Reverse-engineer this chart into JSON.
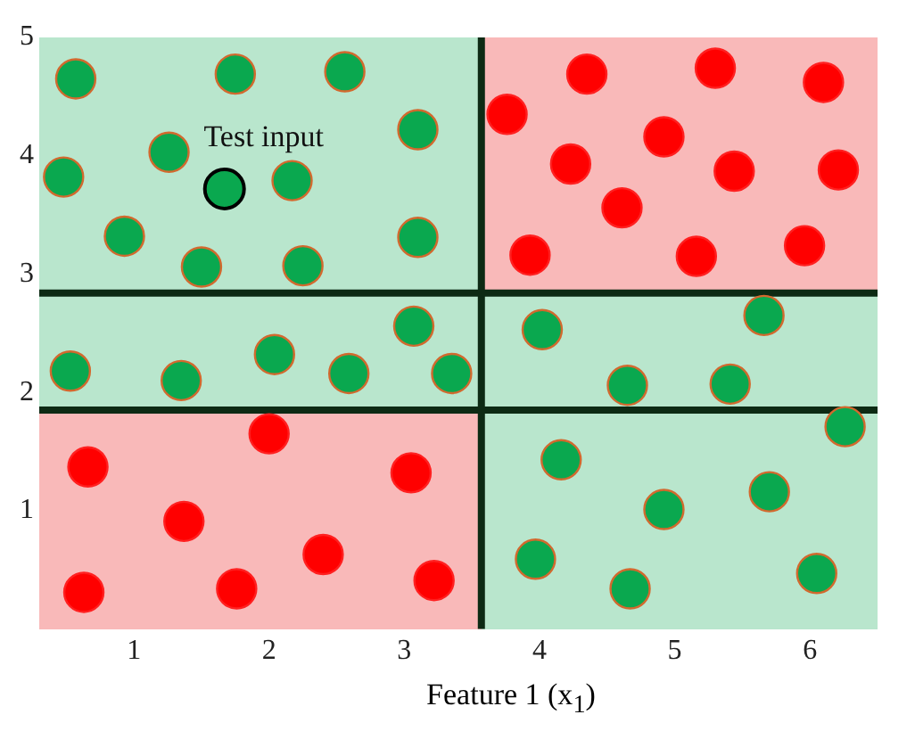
{
  "chart_data": {
    "type": "scatter",
    "xlabel": "Feature 1 (x$_{1}$)",
    "xlim": [
      0.3,
      6.5
    ],
    "ylim": [
      0,
      5
    ],
    "xticks": [
      1,
      2,
      3,
      4,
      5,
      6
    ],
    "yticks": [
      1,
      2,
      3,
      4,
      5
    ],
    "grid": false,
    "legend": false,
    "marker": "circle",
    "series": [
      {
        "color": "#0aa84f",
        "x": [
          0.57,
          1.75,
          2.56,
          3.1,
          0.48,
          1.26,
          2.17,
          3.1,
          0.93,
          1.5,
          2.25,
          0.53,
          1.35,
          2.04,
          2.59,
          3.07,
          3.35,
          4.02,
          5.66,
          4.65,
          5.41,
          4.16,
          6.26,
          4.92,
          5.7,
          3.97,
          4.67,
          6.05
        ],
        "values": [
          4.65,
          4.69,
          4.71,
          4.22,
          3.82,
          4.03,
          3.79,
          3.31,
          3.32,
          3.06,
          3.07,
          2.18,
          2.1,
          2.32,
          2.16,
          2.56,
          2.16,
          2.53,
          2.65,
          2.06,
          2.07,
          1.43,
          1.71,
          1.01,
          1.16,
          0.59,
          0.34,
          0.47
        ]
      },
      {
        "color": "#ff0000",
        "x": [
          0.66,
          2.0,
          3.05,
          1.37,
          0.63,
          1.76,
          2.4,
          3.22,
          4.35,
          5.3,
          6.1,
          3.76,
          4.92,
          4.23,
          5.44,
          6.21,
          4.61,
          3.93,
          5.16,
          5.96
        ],
        "values": [
          1.37,
          1.65,
          1.32,
          0.91,
          0.31,
          0.34,
          0.63,
          0.41,
          4.69,
          4.74,
          4.62,
          4.35,
          4.16,
          3.93,
          3.87,
          3.88,
          3.56,
          3.16,
          3.15,
          3.24
        ]
      },
      {
        "color": "#0aa84f",
        "x": [
          1.67
        ],
        "values": [
          3.72
        ]
      }
    ],
    "ref_lines": [
      {
        "axis": "x",
        "value": 3.57,
        "color": "#0d2a14"
      },
      {
        "axis": "y",
        "value": 2.84,
        "color": "#0d2a14"
      },
      {
        "axis": "y",
        "value": 1.85,
        "color": "#0d2a14"
      }
    ],
    "annotations": [
      {
        "text": "Test input",
        "x": 1.67,
        "y": 3.72
      }
    ]
  }
}
